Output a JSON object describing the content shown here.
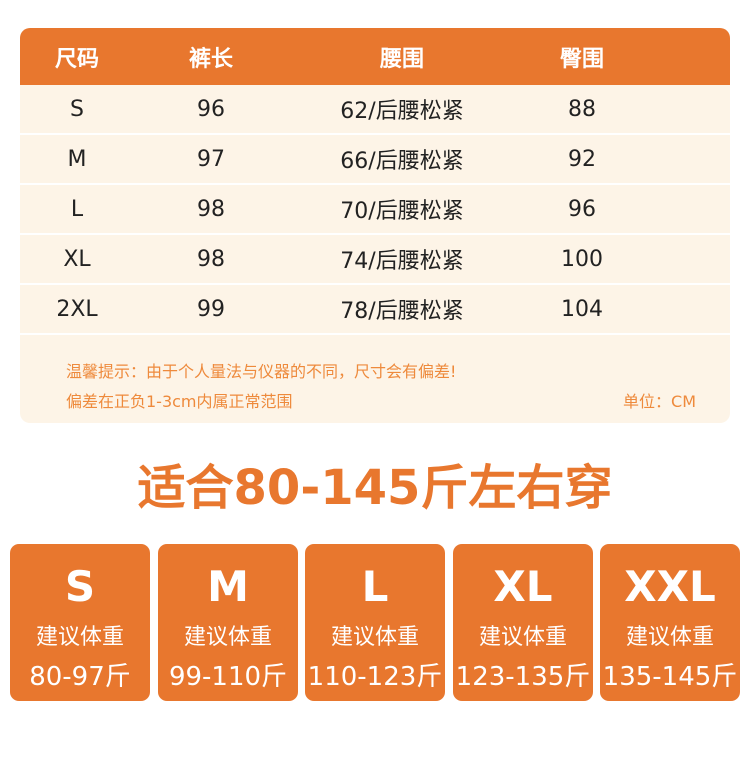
{
  "table": {
    "headers": [
      "尺码",
      "裤长",
      "腰围",
      "臀围"
    ],
    "rows": [
      [
        "S",
        "96",
        "62/后腰松紧",
        "88"
      ],
      [
        "M",
        "97",
        "66/后腰松紧",
        "92"
      ],
      [
        "L",
        "98",
        "70/后腰松紧",
        "96"
      ],
      [
        "XL",
        "98",
        "74/后腰松紧",
        "100"
      ],
      [
        "2XL",
        "99",
        "78/后腰松紧",
        "104"
      ]
    ],
    "note_line1": "温馨提示：由于个人量法与仪器的不同，尺寸会有偏差!",
    "note_line2": "偏差在正负1-3cm内属正常范围",
    "unit": "单位：CM"
  },
  "title": "适合80-145斤左右穿",
  "cards": [
    {
      "size": "S",
      "label": "建议体重",
      "range": "80-97斤"
    },
    {
      "size": "M",
      "label": "建议体重",
      "range": "99-110斤"
    },
    {
      "size": "L",
      "label": "建议体重",
      "range": "110-123斤"
    },
    {
      "size": "XL",
      "label": "建议体重",
      "range": "123-135斤"
    },
    {
      "size": "XXL",
      "label": "建议体重",
      "range": "135-145斤"
    }
  ],
  "colors": {
    "accent": "#e8772e",
    "row_bg": "#fdf4e7"
  }
}
